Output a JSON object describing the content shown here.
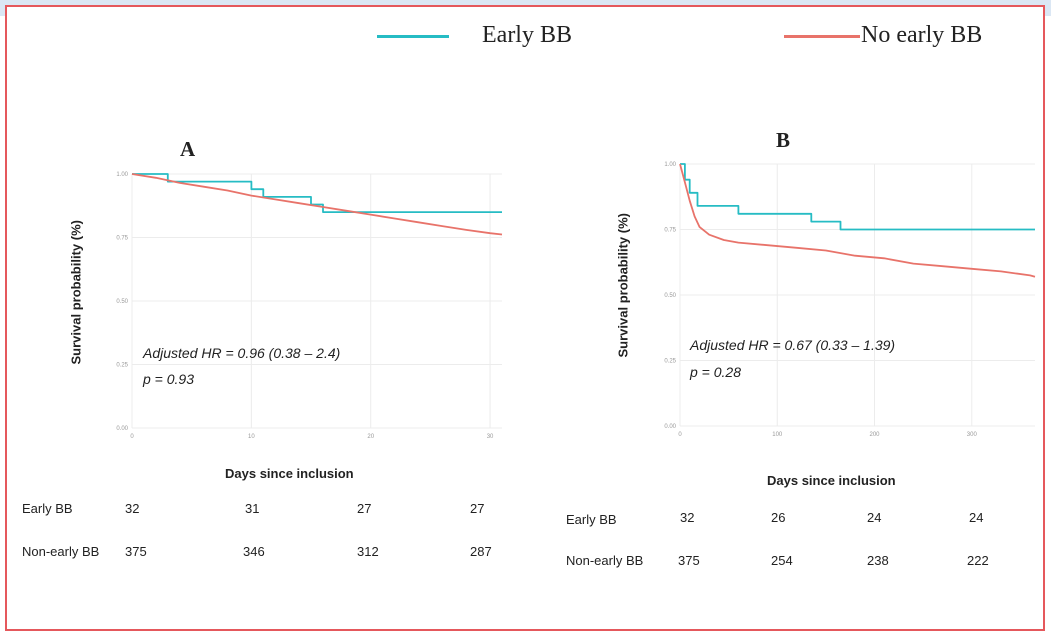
{
  "colors": {
    "early": "#26bcc4",
    "no_early": "#e8736a",
    "frame": "#e5585c",
    "grid": "#ececec"
  },
  "legend": {
    "early_label": "Early BB",
    "no_early_label": "No early BB"
  },
  "chart_data": [
    {
      "type": "line",
      "panel_label": "A",
      "xlabel": "Days since inclusion",
      "ylabel": "Survival probability (%)",
      "annotation_hr": "Adjusted HR = 0.96 (0.38 – 2.4)",
      "annotation_p": "p = 0.93",
      "xlim": [
        0,
        31
      ],
      "ylim": [
        0,
        1
      ],
      "x_ticks": [
        0,
        10,
        20,
        30
      ],
      "y_ticks": [
        0,
        0.25,
        0.5,
        0.75,
        1
      ],
      "y_tick_labels": [
        "0.00",
        "0.25",
        "0.50",
        "0.75",
        "1.00"
      ],
      "series": [
        {
          "name": "Early BB",
          "color": "#26bcc4",
          "x": [
            0,
            3,
            3,
            10,
            10,
            11,
            11,
            15,
            15,
            16,
            16,
            31
          ],
          "y": [
            1.0,
            1.0,
            0.97,
            0.97,
            0.94,
            0.94,
            0.91,
            0.91,
            0.88,
            0.88,
            0.85,
            0.85
          ]
        },
        {
          "name": "No early BB",
          "color": "#e8736a",
          "x": [
            0,
            2,
            4,
            6,
            8,
            10,
            12,
            14,
            16,
            18,
            20,
            22,
            24,
            26,
            28,
            30,
            31
          ],
          "y": [
            1.0,
            0.985,
            0.965,
            0.95,
            0.935,
            0.915,
            0.9,
            0.885,
            0.87,
            0.855,
            0.84,
            0.825,
            0.81,
            0.795,
            0.78,
            0.767,
            0.762
          ]
        }
      ],
      "risk_table": {
        "rows": [
          {
            "label": "Early BB",
            "values": [
              "32",
              "31",
              "27",
              "27"
            ]
          },
          {
            "label": "Non-early BB",
            "values": [
              "375",
              "346",
              "312",
              "287"
            ]
          }
        ]
      }
    },
    {
      "type": "line",
      "panel_label": "B",
      "xlabel": "Days since inclusion",
      "ylabel": "Survival probability (%)",
      "annotation_hr": "Adjusted HR = 0.67 (0.33 – 1.39)",
      "annotation_p": "p = 0.28",
      "xlim": [
        0,
        365
      ],
      "ylim": [
        0,
        1
      ],
      "x_ticks": [
        0,
        100,
        200,
        300
      ],
      "y_ticks": [
        0,
        0.25,
        0.5,
        0.75,
        1
      ],
      "y_tick_labels": [
        "0.00",
        "0.25",
        "0.50",
        "0.75",
        "1.00"
      ],
      "series": [
        {
          "name": "Early BB",
          "color": "#26bcc4",
          "x": [
            0,
            5,
            5,
            10,
            10,
            18,
            18,
            60,
            60,
            135,
            135,
            165,
            165,
            365
          ],
          "y": [
            1.0,
            1.0,
            0.94,
            0.94,
            0.89,
            0.89,
            0.84,
            0.84,
            0.81,
            0.81,
            0.78,
            0.78,
            0.75,
            0.75
          ]
        },
        {
          "name": "No early BB",
          "color": "#e8736a",
          "x": [
            0,
            5,
            10,
            15,
            20,
            30,
            45,
            60,
            90,
            120,
            150,
            180,
            210,
            240,
            270,
            300,
            330,
            360,
            365
          ],
          "y": [
            1.0,
            0.93,
            0.86,
            0.8,
            0.76,
            0.73,
            0.71,
            0.7,
            0.69,
            0.68,
            0.67,
            0.65,
            0.64,
            0.62,
            0.61,
            0.6,
            0.59,
            0.575,
            0.57
          ]
        }
      ],
      "risk_table": {
        "rows": [
          {
            "label": "Early BB",
            "values": [
              "32",
              "26",
              "24",
              "24"
            ]
          },
          {
            "label": "Non-early BB",
            "values": [
              "375",
              "254",
              "238",
              "222"
            ]
          }
        ]
      }
    }
  ]
}
